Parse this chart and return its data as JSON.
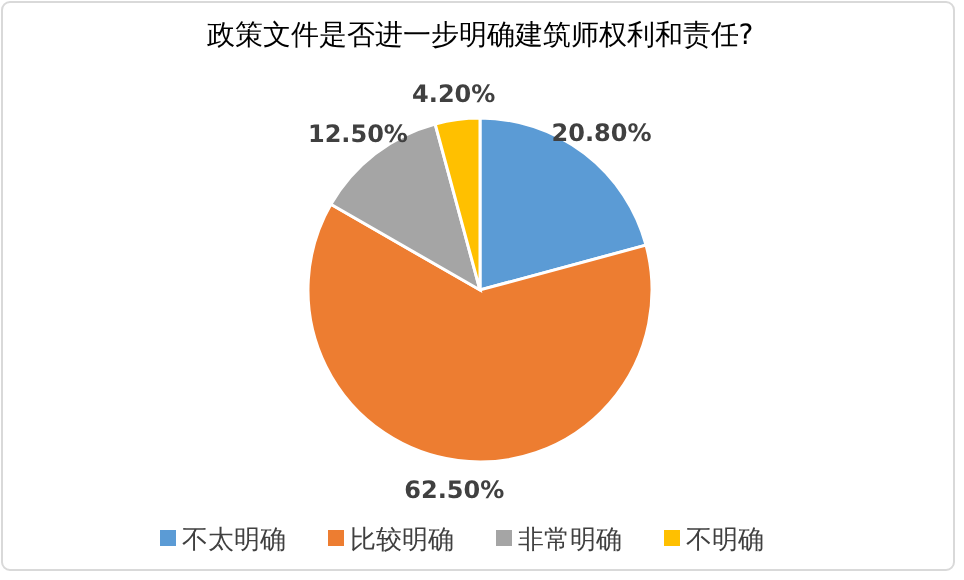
{
  "chart_data": {
    "type": "pie",
    "title": "政策文件是否进一步明确建筑师权利和责任?",
    "categories": [
      "不太明确",
      "比较明确",
      "非常明确",
      "不明确"
    ],
    "values": [
      20.8,
      62.5,
      12.5,
      4.2
    ],
    "colors": [
      "#5b9bd5",
      "#ed7d31",
      "#a5a5a5",
      "#ffc000"
    ],
    "value_labels": [
      "20.80%",
      "62.50%",
      "12.50%",
      "4.20%"
    ],
    "legend": "bottom"
  }
}
